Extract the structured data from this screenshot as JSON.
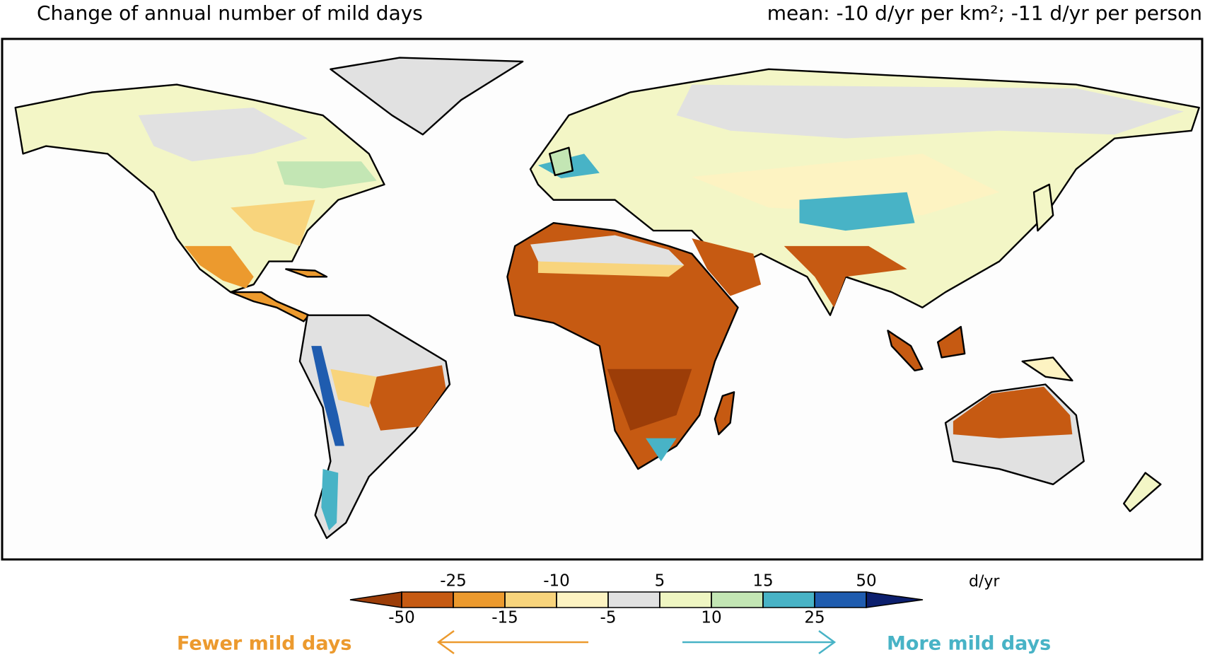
{
  "title": "Change of annual number of mild days",
  "subtitle": "mean: -10 d/yr per km²; -11 d/yr per person",
  "colorbar": {
    "boundaries": [
      -50,
      -25,
      -15,
      -10,
      -5,
      5,
      10,
      15,
      25,
      50
    ],
    "colors": [
      "#9c3d08",
      "#c65a12",
      "#ec9a2e",
      "#f8d47c",
      "#fdf3c2",
      "#e1e1e1",
      "#eff6c2",
      "#c3e6b4",
      "#48b3c6",
      "#1f5caf",
      "#0c1f6e"
    ],
    "unit": "d/yr"
  },
  "legend": {
    "fewer": "Fewer mild days",
    "more": "More mild days"
  }
}
